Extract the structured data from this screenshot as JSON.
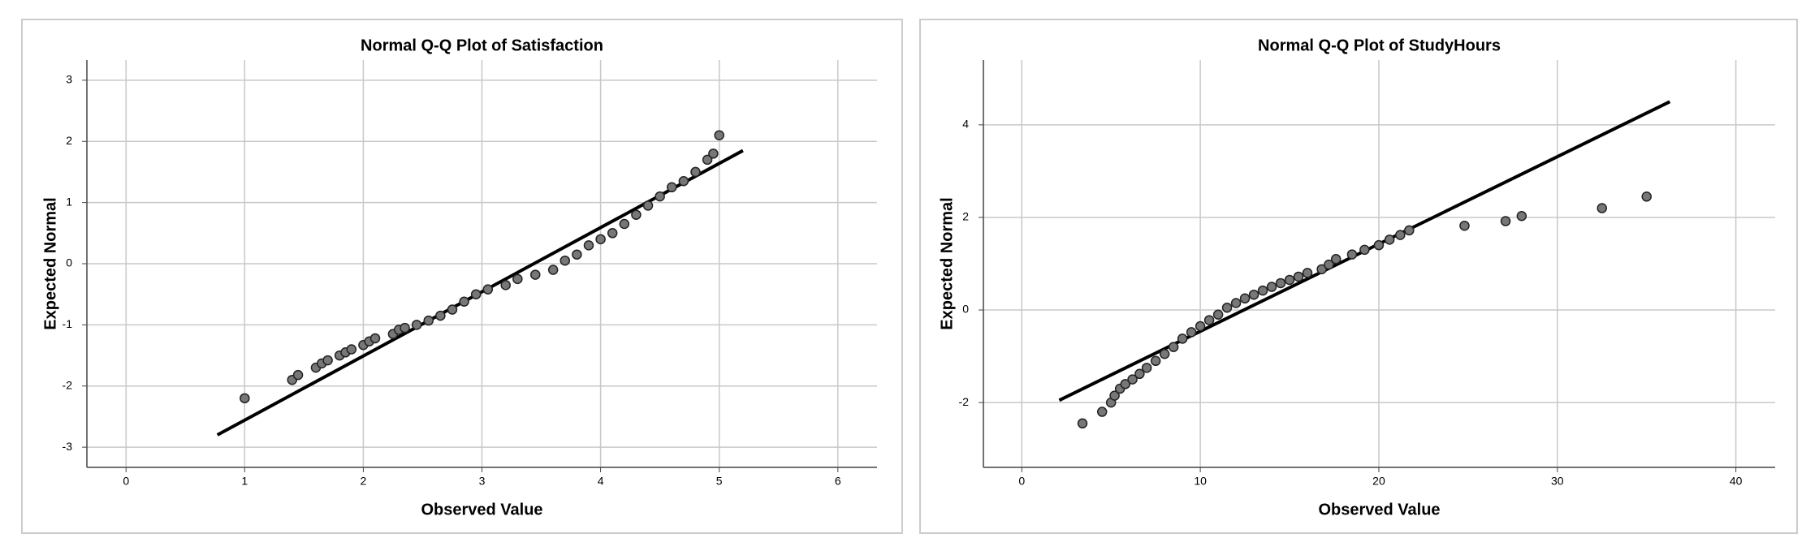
{
  "chart_data": [
    {
      "type": "scatter",
      "title": "Normal Q-Q Plot of Satisfaction",
      "x_label": "Observed Value",
      "y_label": "Expected Normal",
      "xlim": [
        -0.33,
        6.33
      ],
      "ylim": [
        -3.33,
        3.33
      ],
      "xticks": [
        0,
        1,
        2,
        3,
        4,
        5,
        6
      ],
      "yticks": [
        -3,
        -2,
        -1,
        0,
        1,
        2,
        3
      ],
      "grid": true,
      "color": "#777777",
      "x": [
        1,
        1.4,
        1.45,
        1.6,
        1.65,
        1.7,
        1.8,
        1.85,
        1.9,
        2.0,
        2.05,
        2.1,
        2.25,
        2.3,
        2.35,
        2.45,
        2.55,
        2.65,
        2.75,
        2.85,
        2.95,
        3.05,
        3.2,
        3.3,
        3.45,
        3.6,
        3.7,
        3.8,
        3.9,
        4.0,
        4.1,
        4.2,
        4.3,
        4.4,
        4.5,
        4.6,
        4.7,
        4.8,
        4.9,
        4.95,
        5
      ],
      "values": [
        -2.2,
        -1.9,
        -1.82,
        -1.7,
        -1.63,
        -1.58,
        -1.5,
        -1.45,
        -1.4,
        -1.33,
        -1.27,
        -1.22,
        -1.15,
        -1.08,
        -1.05,
        -1.0,
        -0.93,
        -0.85,
        -0.75,
        -0.62,
        -0.5,
        -0.42,
        -0.35,
        -0.25,
        -0.18,
        -0.1,
        0.05,
        0.15,
        0.3,
        0.4,
        0.5,
        0.65,
        0.8,
        0.95,
        1.1,
        1.25,
        1.35,
        1.5,
        1.7,
        1.8,
        2.1
      ],
      "reference_line": {
        "x": [
          0.77,
          5.2
        ],
        "y": [
          -2.8,
          1.85
        ]
      }
    },
    {
      "type": "scatter",
      "title": "Normal Q-Q Plot of StudyHours",
      "x_label": "Observed Value",
      "y_label": "Expected Normal",
      "xlim": [
        -2.15,
        42.2
      ],
      "ylim": [
        -3.4,
        5.4
      ],
      "xticks": [
        0,
        10,
        20,
        30,
        40
      ],
      "yticks": [
        -2,
        0,
        2,
        4
      ],
      "grid": true,
      "color": "#777777",
      "x": [
        3.4,
        4.5,
        5.0,
        5.2,
        5.5,
        5.8,
        6.2,
        6.6,
        7,
        7.5,
        8,
        8.5,
        9,
        9.5,
        10,
        10.5,
        11,
        11.5,
        12,
        12.5,
        13,
        13.5,
        14,
        14.5,
        15,
        15.5,
        16,
        16.8,
        17.2,
        17.6,
        18.5,
        19.2,
        20,
        20.6,
        21.2,
        21.7,
        24.8,
        27.1,
        28,
        32.5,
        35
      ],
      "values": [
        -2.45,
        -2.2,
        -2.0,
        -1.85,
        -1.7,
        -1.6,
        -1.5,
        -1.38,
        -1.25,
        -1.1,
        -0.95,
        -0.8,
        -0.62,
        -0.48,
        -0.35,
        -0.22,
        -0.1,
        0.05,
        0.15,
        0.25,
        0.33,
        0.42,
        0.5,
        0.58,
        0.65,
        0.72,
        0.8,
        0.88,
        0.98,
        1.1,
        1.2,
        1.3,
        1.4,
        1.52,
        1.62,
        1.72,
        1.82,
        1.92,
        2.03,
        2.2,
        2.45
      ],
      "reference_line": {
        "x": [
          2.1,
          36.3
        ],
        "y": [
          -1.95,
          4.5
        ]
      }
    }
  ]
}
